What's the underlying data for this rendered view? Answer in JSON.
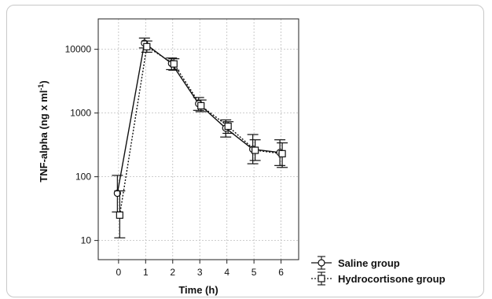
{
  "chart_data": {
    "type": "line",
    "title": "",
    "xlabel": "Time (h)",
    "ylabel": "TNF-alpha (ng x ml",
    "ylabel_sup": "-1",
    "ylabel_end": ")",
    "y_scale": "log",
    "ylim": [
      5,
      30000
    ],
    "xlim": [
      -0.75,
      6.65
    ],
    "x_ticks": [
      0,
      1,
      2,
      3,
      4,
      5,
      6
    ],
    "x_tick_labels": [
      "0",
      "1",
      "2",
      "3",
      "4",
      "5",
      "6"
    ],
    "y_ticks": [
      10,
      100,
      1000,
      10000
    ],
    "y_tick_labels": [
      "10",
      "100",
      "1000",
      "10000"
    ],
    "grid": true,
    "legend_position": "right-bottom",
    "series": [
      {
        "name": "Saline group",
        "marker": "circle",
        "line_style": "solid",
        "x": [
          0,
          1,
          2,
          3,
          4,
          5,
          6
        ],
        "y": [
          55,
          12500,
          6000,
          1400,
          580,
          270,
          240
        ],
        "y_err_low": [
          28,
          10500,
          4800,
          1100,
          420,
          160,
          150
        ],
        "y_err_high": [
          105,
          15000,
          7300,
          1750,
          780,
          460,
          380
        ]
      },
      {
        "name": "Hydrocortisone group",
        "marker": "square",
        "line_style": "dotted",
        "x": [
          0,
          1,
          2,
          3,
          4,
          5,
          6
        ],
        "y": [
          25,
          11000,
          5900,
          1300,
          620,
          260,
          230
        ],
        "y_err_low": [
          11,
          9000,
          4700,
          1050,
          480,
          180,
          140
        ],
        "y_err_high": [
          60,
          13500,
          7100,
          1600,
          730,
          380,
          340
        ]
      }
    ]
  }
}
